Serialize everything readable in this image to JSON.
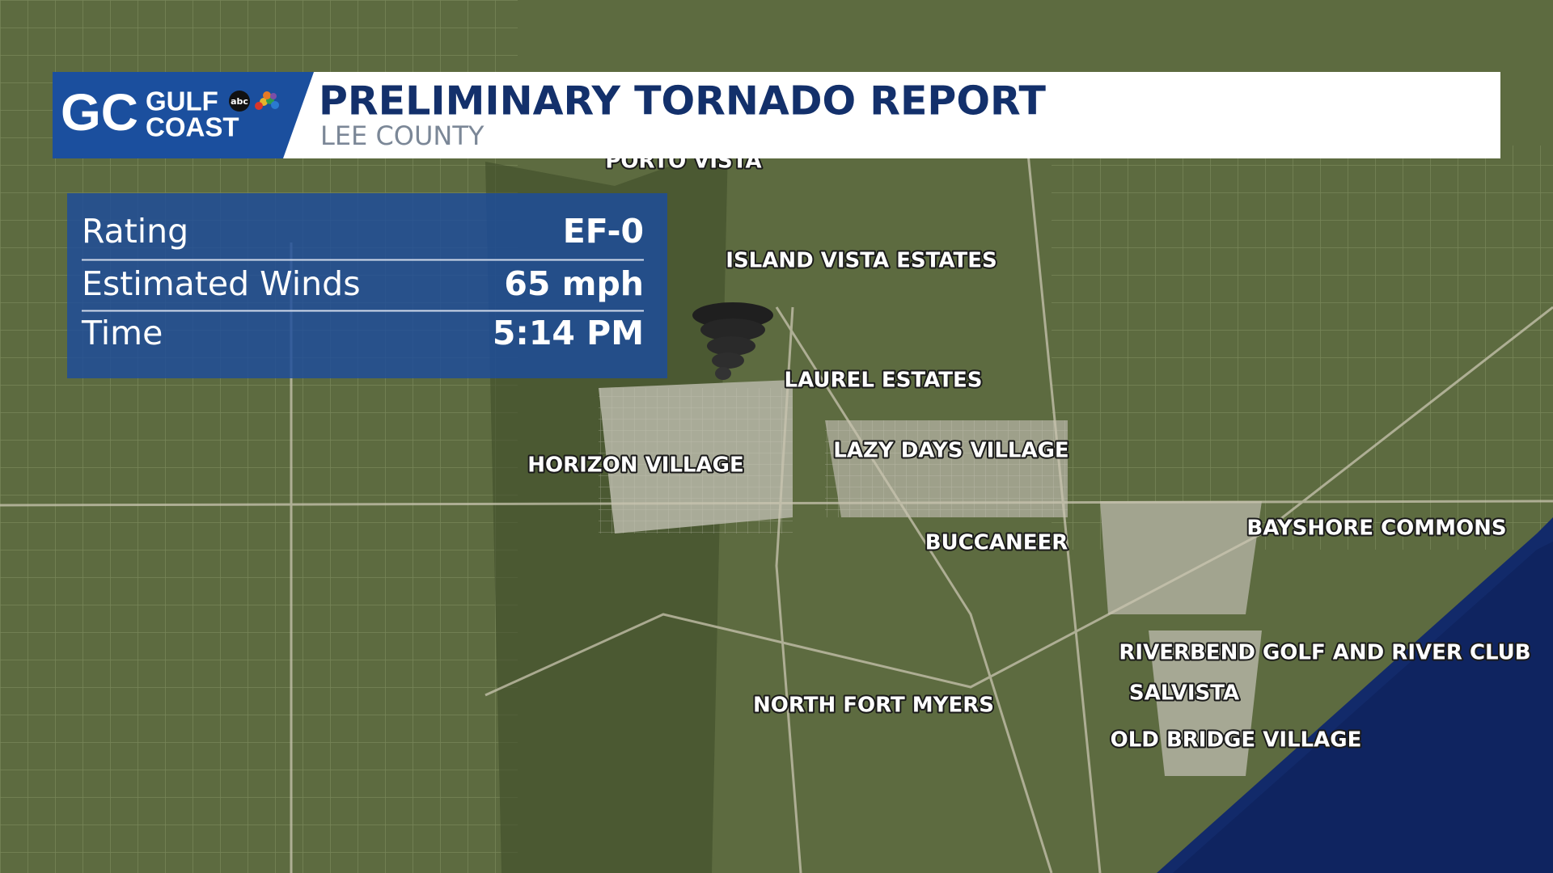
{
  "header": {
    "logo_mark": "GC",
    "logo_line1": "GULF",
    "logo_line2": "COAST",
    "network": "abc",
    "title": "PRELIMINARY TORNADO REPORT",
    "subtitle": "LEE COUNTY"
  },
  "info": {
    "rows": [
      [
        "Rating",
        "EF-0"
      ],
      [
        "Estimated Winds",
        "65 mph"
      ],
      [
        "Time",
        "5:14 PM"
      ]
    ]
  },
  "places": [
    "PORTO VISTA",
    "ISLAND VISTA ESTATES",
    "LAUREL ESTATES",
    "HORIZON VILLAGE",
    "LAZY DAYS VILLAGE",
    "BUCCANEER",
    "BAYSHORE COMMONS",
    "RIVERBEND GOLF AND RIVER CLUB",
    "SALVISTA",
    "OLD BRIDGE VILLAGE",
    "NORTH FORT MYERS"
  ]
}
